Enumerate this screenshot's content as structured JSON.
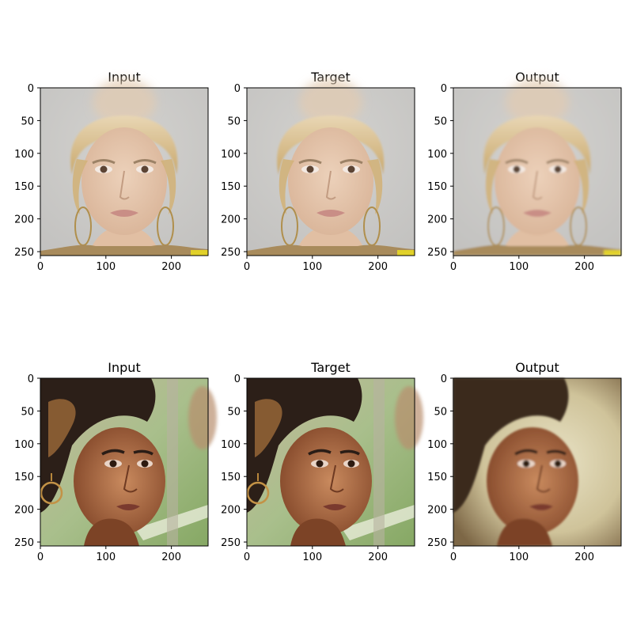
{
  "figure": {
    "rows": [
      {
        "panels": [
          {
            "title": "Input",
            "subject": "blonde-woman-face",
            "variant": "input"
          },
          {
            "title": "Target",
            "subject": "blonde-woman-face",
            "variant": "target"
          },
          {
            "title": "Output",
            "subject": "blonde-woman-face",
            "variant": "output"
          }
        ]
      },
      {
        "panels": [
          {
            "title": "Input",
            "subject": "dark-hair-woman-face",
            "variant": "input"
          },
          {
            "title": "Target",
            "subject": "dark-hair-woman-face",
            "variant": "target"
          },
          {
            "title": "Output",
            "subject": "dark-hair-woman-face",
            "variant": "output"
          }
        ]
      }
    ],
    "axes": {
      "x_ticks": [
        "0",
        "100",
        "200"
      ],
      "y_ticks": [
        "0",
        "50",
        "100",
        "150",
        "200",
        "250"
      ],
      "x_tick_values": [
        0,
        100,
        200
      ],
      "y_tick_values": [
        0,
        50,
        100,
        150,
        200,
        250
      ],
      "image_extent": [
        0,
        256
      ]
    },
    "colors": {
      "background_row1": "#c9c8c6",
      "skin_row1": "#e6c7ad",
      "hair_row1": "#d8c08c",
      "background_row2": "#9eb58a",
      "skin_row2": "#9a5a34",
      "hair_row2": "#2a1d16"
    }
  }
}
